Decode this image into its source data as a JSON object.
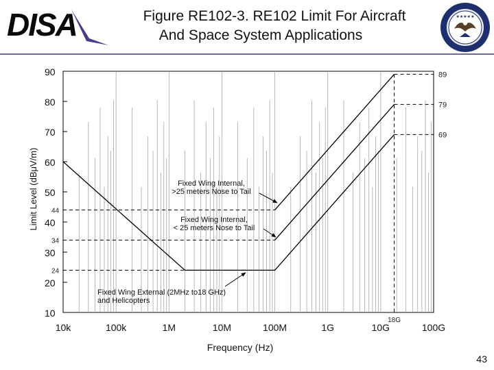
{
  "header": {
    "logo_text": "DISA",
    "title_line1": "Figure RE102-3. RE102 Limit For Aircraft",
    "title_line2": "And Space System Applications",
    "seal_text": "DEFENSE INFORMATION SYSTEMS AGENCY"
  },
  "page_number": "43",
  "colors": {
    "line": "#000000",
    "rule": "#6a6a9a",
    "logo": "#0a0a0a",
    "logo_swoosh": "#4a3c8c"
  },
  "chart_data": {
    "type": "line",
    "title": "Figure RE102-3. RE102 Limit For Aircraft And Space System Applications",
    "xlabel": "Frequency (Hz)",
    "ylabel": "Limit Level (dBμV/m)",
    "x_scale": "log",
    "xlim": [
      10000,
      100000000000
    ],
    "ylim": [
      10,
      90
    ],
    "x_ticks": [
      {
        "value": 10000,
        "label": "10k"
      },
      {
        "value": 100000,
        "label": "100k"
      },
      {
        "value": 1000000,
        "label": "1M"
      },
      {
        "value": 10000000,
        "label": "10M"
      },
      {
        "value": 100000000,
        "label": "100M"
      },
      {
        "value": 1000000000,
        "label": "1G"
      },
      {
        "value": 10000000000,
        "label": "10G"
      },
      {
        "value": 100000000000,
        "label": "100G"
      }
    ],
    "y_ticks": [
      10,
      20,
      30,
      40,
      50,
      60,
      70,
      80,
      90
    ],
    "series": [
      {
        "name": "Fixed Wing External (2MHz to18 GHz) and Helicopters",
        "points": [
          [
            10000,
            60
          ],
          [
            2000000,
            24
          ],
          [
            100000000,
            24
          ],
          [
            18000000000,
            69
          ]
        ]
      },
      {
        "name": "Fixed Wing Internal, < 25 meters Nose to Tail",
        "points": [
          [
            100000000,
            34
          ],
          [
            18000000000,
            79
          ]
        ]
      },
      {
        "name": "Fixed Wing Internal, >25 meters Nose to Tail",
        "points": [
          [
            100000000,
            44
          ],
          [
            18000000000,
            89
          ]
        ]
      }
    ],
    "reference_levels": [
      {
        "value": 44,
        "label": "44",
        "x_end": 100000000
      },
      {
        "value": 34,
        "label": "34",
        "x_end": 100000000
      },
      {
        "value": 24,
        "label": "24",
        "x_end": 100000000
      }
    ],
    "end_levels": [
      {
        "value": 89,
        "label": "89"
      },
      {
        "value": 79,
        "label": "79"
      },
      {
        "value": 69,
        "label": "69"
      }
    ],
    "cutoff": {
      "value": 18000000000,
      "label": "18G"
    },
    "annotations": [
      {
        "lines": [
          "Fixed Wing Internal,",
          ">25 meters Nose to Tail"
        ],
        "series": 2
      },
      {
        "lines": [
          "Fixed Wing Internal,",
          "< 25 meters Nose to Tail"
        ],
        "series": 1
      },
      {
        "lines": [
          "Fixed Wing External (2MHz to18 GHz)",
          "and Helicopters"
        ],
        "series": 0
      }
    ],
    "grid": true
  }
}
